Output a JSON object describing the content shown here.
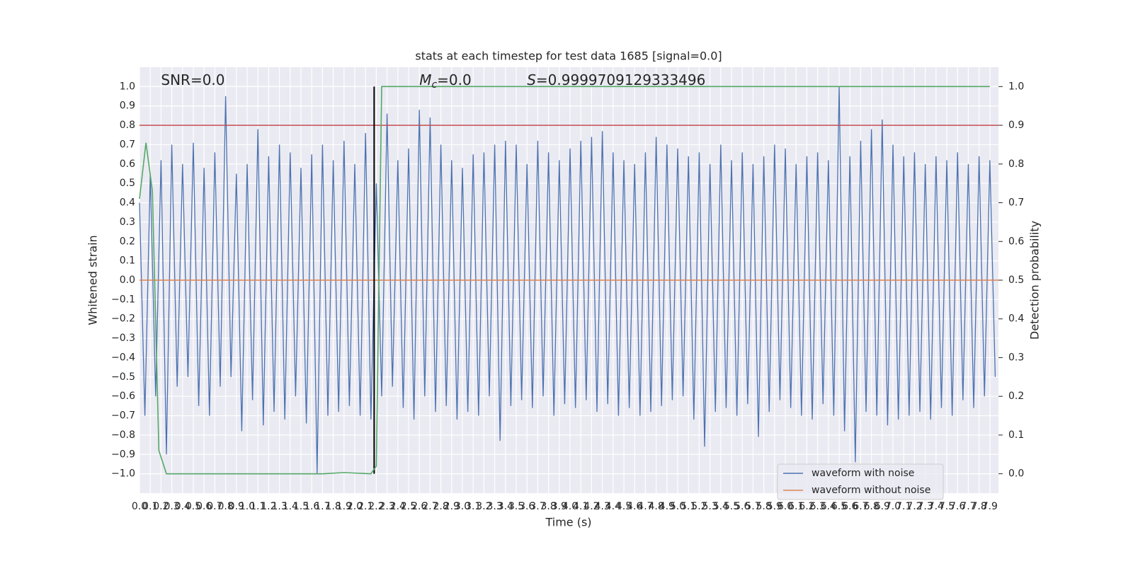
{
  "chart_data": {
    "type": "line",
    "title": "stats at each timestep for test data 1685 [signal=0.0]",
    "xlabel": "Time (s)",
    "ylabel": "Whitened strain",
    "y2label": "Detection probability",
    "annotations": [
      {
        "text": "SNR=0.0",
        "x": 0.2,
        "y": 1.03
      },
      {
        "symbol": "M",
        "subscript": "c",
        "text": "=0.0",
        "x": 2.6,
        "y": 1.03
      },
      {
        "symbol": "S",
        "text": "=0.9999709129333496",
        "x": 3.6,
        "y": 1.03
      }
    ],
    "xlim": [
      0,
      7.98
    ],
    "ylim": [
      -1.1,
      1.1
    ],
    "y2lim": [
      -0.05,
      1.05
    ],
    "grid": true,
    "legend": "lower right",
    "xticks": [
      {
        "value": 0,
        "label": "0.0"
      },
      0.1,
      0.2,
      0.3,
      0.4,
      0.5,
      0.6,
      0.7,
      0.8,
      0.9,
      {
        "value": 1,
        "label": "1.0"
      },
      1.1,
      1.2,
      1.3,
      1.4,
      1.5,
      1.6,
      1.7,
      1.8,
      1.9,
      {
        "value": 2,
        "label": "2.0"
      },
      2.1,
      2.2,
      2.3,
      2.4,
      2.5,
      2.6,
      2.7,
      2.8,
      2.9,
      {
        "value": 3,
        "label": "3.0"
      },
      3.1,
      3.2,
      3.3,
      3.4,
      3.5,
      3.6,
      3.7,
      3.8,
      3.9,
      {
        "value": 4,
        "label": "4.0"
      },
      4.1,
      4.2,
      4.3,
      4.4,
      4.5,
      4.6,
      4.7,
      4.8,
      4.9,
      {
        "value": 5,
        "label": "5.0"
      },
      5.1,
      5.2,
      5.3,
      5.4,
      5.5,
      5.6,
      5.7,
      5.8,
      5.9,
      {
        "value": 6,
        "label": "6.0"
      },
      6.1,
      6.2,
      6.3,
      6.4,
      6.5,
      6.6,
      6.7,
      6.8,
      6.9,
      {
        "value": 7,
        "label": "7.0"
      },
      7.1,
      7.2,
      7.3,
      7.4,
      7.5,
      7.6,
      7.7,
      7.8,
      7.9
    ],
    "yticks": [
      {
        "value": 1,
        "label": "1.0"
      },
      0.9,
      0.8,
      0.7,
      0.6,
      0.5,
      0.4,
      0.3,
      0.2,
      0.1,
      {
        "value": 0,
        "label": "0.0"
      },
      {
        "value": -0.1,
        "label": "−0.1"
      },
      {
        "value": -0.2,
        "label": "−0.2"
      },
      {
        "value": -0.3,
        "label": "−0.3"
      },
      {
        "value": -0.4,
        "label": "−0.4"
      },
      {
        "value": -0.5,
        "label": "−0.5"
      },
      {
        "value": -0.6,
        "label": "−0.6"
      },
      {
        "value": -0.7,
        "label": "−0.7"
      },
      {
        "value": -0.8,
        "label": "−0.8"
      },
      {
        "value": -0.9,
        "label": "−0.9"
      },
      {
        "value": -1,
        "label": "−1.0"
      }
    ],
    "y2ticks": [
      {
        "value": 0,
        "label": "0.0"
      },
      0.1,
      0.2,
      0.3,
      0.4,
      0.5,
      0.6,
      0.7,
      0.8,
      0.9,
      {
        "value": 1,
        "label": "1.0"
      }
    ],
    "series": [
      {
        "name": "waveform with noise",
        "color": "#4c72b0",
        "x": [
          0,
          0.05,
          0.1,
          0.15,
          0.2,
          0.25,
          0.3,
          0.35,
          0.4,
          0.45,
          0.5,
          0.55,
          0.6,
          0.65,
          0.7,
          0.75,
          0.8,
          0.85,
          0.9,
          0.95,
          1,
          1.05,
          1.1,
          1.15,
          1.2,
          1.25,
          1.3,
          1.35,
          1.4,
          1.45,
          1.5,
          1.55,
          1.6,
          1.65,
          1.7,
          1.75,
          1.8,
          1.85,
          1.9,
          1.95,
          2,
          2.05,
          2.1,
          2.15,
          2.2,
          2.25,
          2.3,
          2.35,
          2.4,
          2.45,
          2.5,
          2.55,
          2.6,
          2.65,
          2.7,
          2.75,
          2.8,
          2.85,
          2.9,
          2.95,
          3,
          3.05,
          3.1,
          3.15,
          3.2,
          3.25,
          3.3,
          3.35,
          3.4,
          3.45,
          3.5,
          3.55,
          3.6,
          3.65,
          3.7,
          3.75,
          3.8,
          3.85,
          3.9,
          3.95,
          4,
          4.05,
          4.1,
          4.15,
          4.2,
          4.25,
          4.3,
          4.35,
          4.4,
          4.45,
          4.5,
          4.55,
          4.6,
          4.65,
          4.7,
          4.75,
          4.8,
          4.85,
          4.9,
          4.95,
          5,
          5.05,
          5.1,
          5.15,
          5.2,
          5.25,
          5.3,
          5.35,
          5.4,
          5.45,
          5.5,
          5.55,
          5.6,
          5.65,
          5.7,
          5.75,
          5.8,
          5.85,
          5.9,
          5.95,
          6,
          6.05,
          6.1,
          6.15,
          6.2,
          6.25,
          6.3,
          6.35,
          6.4,
          6.45,
          6.5,
          6.55,
          6.6,
          6.65,
          6.7,
          6.75,
          6.8,
          6.85,
          6.9,
          6.95,
          7,
          7.05,
          7.1,
          7.15,
          7.2,
          7.25,
          7.3,
          7.35,
          7.4,
          7.45,
          7.5,
          7.55,
          7.6,
          7.65,
          7.7,
          7.75,
          7.8,
          7.85,
          7.9,
          7.95
        ],
        "values": [
          0.4,
          -0.7,
          0.55,
          -0.6,
          0.62,
          -0.9,
          0.7,
          -0.55,
          0.6,
          -0.5,
          0.71,
          -0.65,
          0.58,
          -0.7,
          0.66,
          -0.55,
          0.95,
          -0.5,
          0.55,
          -0.78,
          0.6,
          -0.62,
          0.78,
          -0.75,
          0.64,
          -0.68,
          0.7,
          -0.72,
          0.66,
          -0.6,
          0.58,
          -0.74,
          0.65,
          -1,
          0.7,
          -0.7,
          0.62,
          -0.68,
          0.72,
          -0.65,
          0.6,
          -0.7,
          0.76,
          -0.72,
          0.5,
          -0.6,
          0.86,
          -0.55,
          0.62,
          -0.66,
          0.68,
          -0.72,
          0.88,
          -0.6,
          0.84,
          -0.68,
          0.7,
          -0.65,
          0.62,
          -0.72,
          0.58,
          -0.68,
          0.65,
          -0.7,
          0.66,
          -0.6,
          0.7,
          -0.83,
          0.72,
          -0.65,
          0.7,
          -0.62,
          0.6,
          -0.66,
          0.72,
          -0.6,
          0.66,
          -0.7,
          0.62,
          -0.64,
          0.68,
          -0.66,
          0.72,
          -0.62,
          0.74,
          -0.68,
          0.77,
          -0.64,
          0.66,
          -0.7,
          0.62,
          -0.66,
          0.6,
          -0.7,
          0.66,
          -0.68,
          0.74,
          -0.65,
          0.7,
          -0.62,
          0.68,
          -0.6,
          0.64,
          -0.72,
          0.66,
          -0.86,
          0.6,
          -0.68,
          0.7,
          -0.66,
          0.62,
          -0.7,
          0.66,
          -0.64,
          0.6,
          -0.81,
          0.64,
          -0.68,
          0.7,
          -0.62,
          0.68,
          -0.66,
          0.6,
          -0.7,
          0.64,
          -0.72,
          0.66,
          -0.64,
          0.62,
          -0.7,
          1,
          -0.78,
          0.64,
          -0.94,
          0.72,
          -0.68,
          0.78,
          -0.7,
          0.83,
          -0.75,
          0.7,
          -0.72,
          0.64,
          -0.7,
          0.66,
          -0.68,
          0.6,
          -0.72,
          0.64,
          -0.66,
          0.62,
          -0.7,
          0.66,
          -0.62,
          0.6,
          -0.66,
          0.64,
          -0.6,
          0.62,
          -0.5
        ]
      },
      {
        "name": "waveform without noise",
        "color": "#dd8452",
        "x": [
          0,
          7.98
        ],
        "values": [
          0,
          0
        ]
      },
      {
        "color": "#55a868",
        "axis": "y2",
        "x": [
          0,
          0.06,
          0.12,
          0.18,
          0.25,
          1.7,
          1.9,
          2.15,
          2.2,
          2.25,
          7.9
        ],
        "values": [
          0.71,
          0.855,
          0.73,
          0.06,
          0,
          0,
          0.003,
          0,
          0.02,
          1,
          1
        ]
      }
    ],
    "hlines": [
      {
        "y": 0.8,
        "color": "#c44e52"
      }
    ],
    "vlines": [
      {
        "x": 2.18,
        "ymin": -1,
        "ymax": 1,
        "color": "#000000"
      }
    ]
  }
}
